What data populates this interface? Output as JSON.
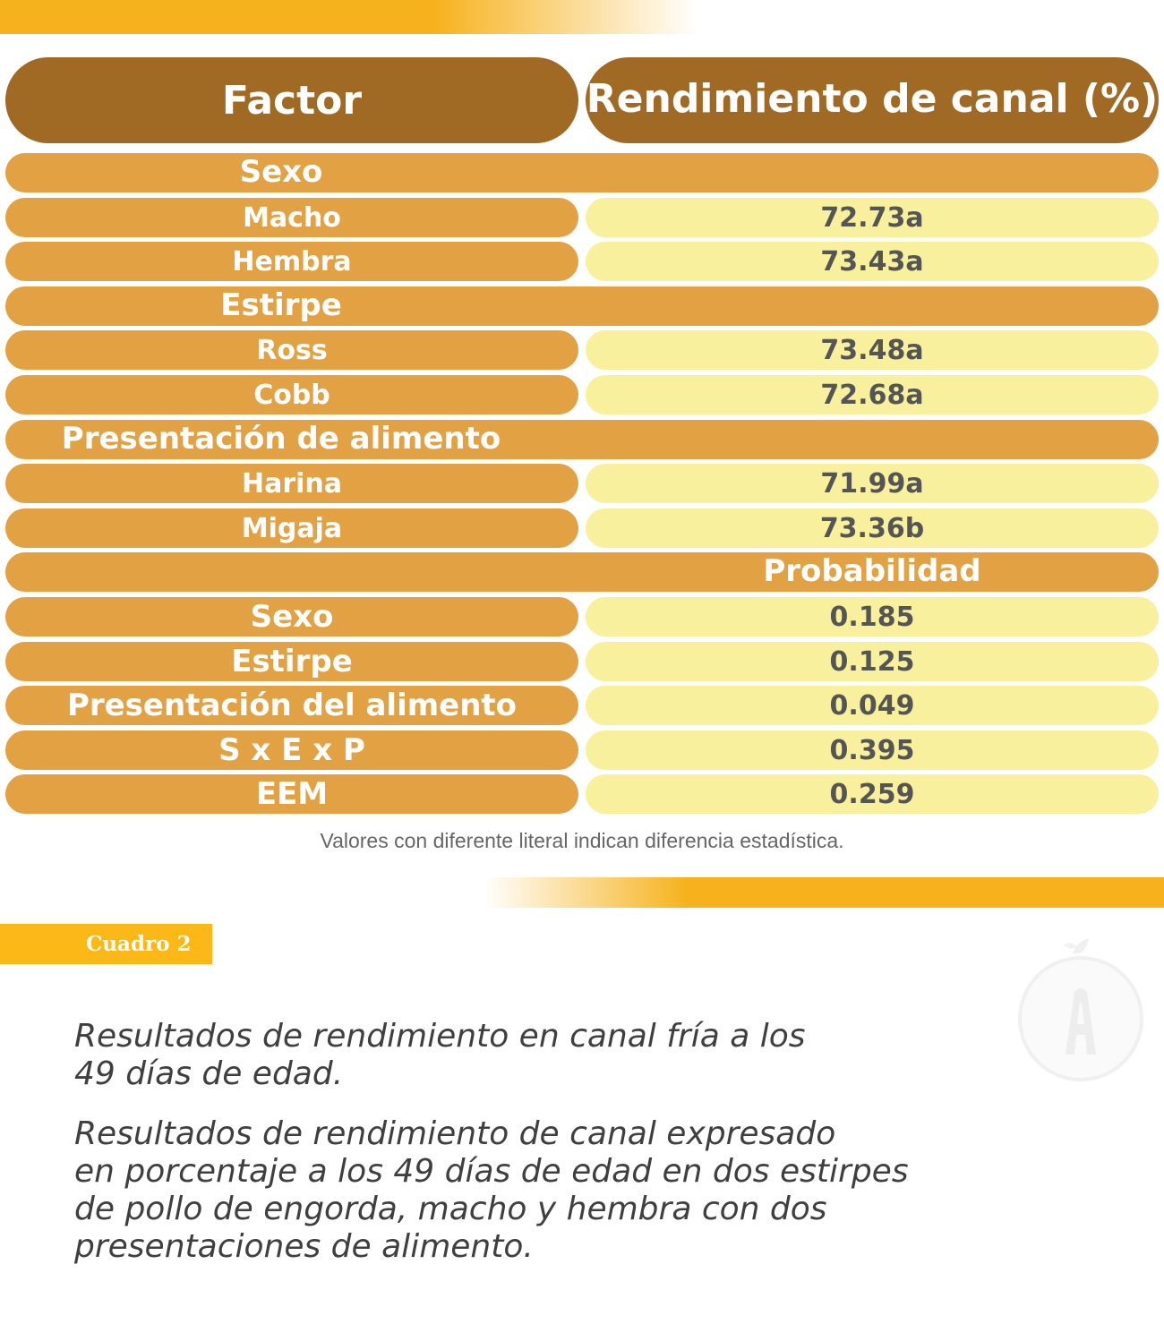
{
  "table": {
    "header": {
      "factor": "Factor",
      "value": "Rendimiento de canal (%)"
    },
    "rows": [
      {
        "type": "section",
        "label": "Sexo"
      },
      {
        "type": "data",
        "label": "Macho",
        "value": "72.73a"
      },
      {
        "type": "data",
        "label": "Hembra",
        "value": "73.43a"
      },
      {
        "type": "section",
        "label": "Estirpe"
      },
      {
        "type": "data",
        "label": "Ross",
        "value": "73.48a"
      },
      {
        "type": "data",
        "label": "Cobb",
        "value": "72.68a"
      },
      {
        "type": "section",
        "label": "Presentación de alimento"
      },
      {
        "type": "data",
        "label": "Harina",
        "value": "71.99a"
      },
      {
        "type": "data",
        "label": "Migaja",
        "value": "73.36b"
      },
      {
        "type": "section",
        "label": "Probabilidad",
        "align": "right"
      },
      {
        "type": "data",
        "label": "Sexo",
        "value": "0.185",
        "bold": true
      },
      {
        "type": "data",
        "label": "Estirpe",
        "value": "0.125",
        "bold": true
      },
      {
        "type": "data",
        "label": "Presentación del alimento",
        "value": "0.049",
        "bold": true
      },
      {
        "type": "data",
        "label": "S x E x P",
        "value": "0.395",
        "bold": true
      },
      {
        "type": "data",
        "label": "EEM",
        "value": "0.259",
        "bold": true
      }
    ],
    "note": "Valores con diferente literal indican diferencia estadística."
  },
  "badge": "Cuadro 2",
  "caption": {
    "line1a": "Resultados de rendimiento en canal fría a los",
    "line1b": "49 días de edad.",
    "line2a": "Resultados de rendimiento de canal expresado",
    "line2b": "en porcentaje a los 49 días de edad en dos estirpes",
    "line2c": "de pollo de engorda, macho y hembra con dos",
    "line2d": "presentaciones de alimento."
  },
  "colors": {
    "header": "#a06a24",
    "label_cell": "#e2a244",
    "value_cell": "#f8f09c",
    "stripe": "#f6b21d",
    "badge": "#fbb816"
  },
  "icons": {
    "logo": "apple-bird-logo-icon"
  }
}
